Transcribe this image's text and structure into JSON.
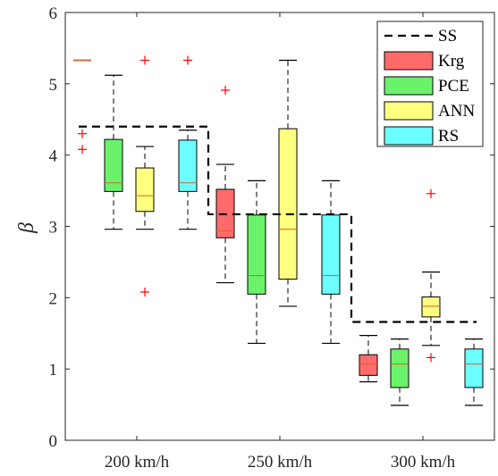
{
  "chart_data": {
    "type": "box",
    "title": "",
    "xlabel": "",
    "ylabel": "β",
    "ylim": [
      0,
      6
    ],
    "yticks": [
      0,
      1,
      2,
      3,
      4,
      5,
      6
    ],
    "grid": false,
    "legend_position": "top-right",
    "categories": [
      "200 km/h",
      "250 km/h",
      "300 km/h"
    ],
    "reference_line": {
      "name": "SS",
      "style": "dashed",
      "color": "#000000",
      "values": [
        4.4,
        3.17,
        1.66
      ]
    },
    "series": [
      {
        "name": "Krg",
        "color": "#ff6b6b",
        "boxes": [
          {
            "whisker_low": 5.33,
            "q1": 5.33,
            "median": 5.33,
            "q3": 5.33,
            "whisker_high": 5.33,
            "outliers": [
              4.3,
              4.08
            ]
          },
          {
            "whisker_low": 2.21,
            "q1": 2.84,
            "median": 2.94,
            "q3": 3.52,
            "whisker_high": 3.87,
            "outliers": [
              4.91
            ]
          },
          {
            "whisker_low": 0.82,
            "q1": 0.91,
            "median": 1.07,
            "q3": 1.2,
            "whisker_high": 1.47,
            "outliers": []
          }
        ]
      },
      {
        "name": "PCE",
        "color": "#6bf26b",
        "boxes": [
          {
            "whisker_low": 2.96,
            "q1": 3.49,
            "median": 3.61,
            "q3": 4.22,
            "whisker_high": 5.12,
            "outliers": []
          },
          {
            "whisker_low": 1.36,
            "q1": 2.05,
            "median": 2.31,
            "q3": 3.16,
            "whisker_high": 3.64,
            "outliers": []
          },
          {
            "whisker_low": 0.49,
            "q1": 0.74,
            "median": 1.07,
            "q3": 1.28,
            "whisker_high": 1.42,
            "outliers": []
          }
        ]
      },
      {
        "name": "ANN",
        "color": "#ffff80",
        "boxes": [
          {
            "whisker_low": 2.96,
            "q1": 3.21,
            "median": 3.43,
            "q3": 3.82,
            "whisker_high": 4.12,
            "outliers": [
              5.33,
              2.08
            ]
          },
          {
            "whisker_low": 1.88,
            "q1": 2.26,
            "median": 2.96,
            "q3": 4.37,
            "whisker_high": 5.33,
            "outliers": []
          },
          {
            "whisker_low": 1.33,
            "q1": 1.73,
            "median": 1.88,
            "q3": 2.01,
            "whisker_high": 2.36,
            "outliers": [
              3.46,
              1.16
            ]
          }
        ]
      },
      {
        "name": "RS",
        "color": "#6bffff",
        "boxes": [
          {
            "whisker_low": 2.96,
            "q1": 3.49,
            "median": 3.61,
            "q3": 4.21,
            "whisker_high": 4.35,
            "outliers": [
              5.33
            ]
          },
          {
            "whisker_low": 1.36,
            "q1": 2.05,
            "median": 2.31,
            "q3": 3.16,
            "whisker_high": 3.64,
            "outliers": []
          },
          {
            "whisker_low": 0.49,
            "q1": 0.74,
            "median": 1.07,
            "q3": 1.28,
            "whisker_high": 1.42,
            "outliers": []
          }
        ]
      }
    ]
  }
}
